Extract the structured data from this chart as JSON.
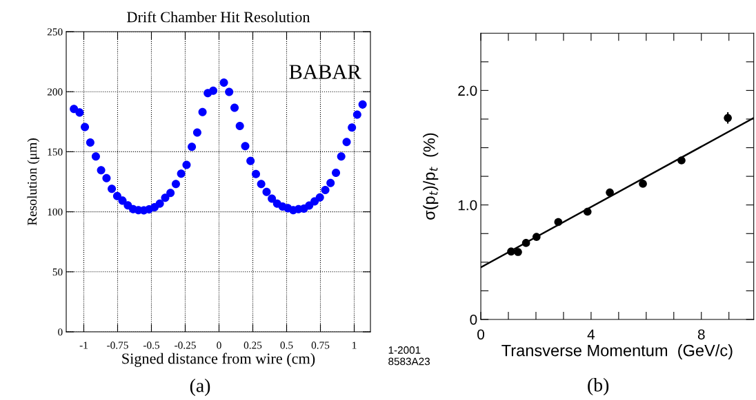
{
  "chart_data": [
    {
      "type": "scatter",
      "title": "Drift Chamber Hit Resolution",
      "xlabel": "Signed distance from wire (cm)",
      "ylabel": "Resolution (μm)",
      "annotations": [
        "BABAR",
        "(a)"
      ],
      "xlim": [
        -1.13,
        1.12
      ],
      "ylim": [
        0,
        250
      ],
      "xticks": [
        {
          "value": -1,
          "label": "-1"
        },
        {
          "value": -0.75,
          "label": "-0.75"
        },
        {
          "value": -0.5,
          "label": "-0.5"
        },
        {
          "value": -0.25,
          "label": "-0.25"
        },
        0,
        0.25,
        0.5,
        0.75,
        1
      ],
      "yticks": [
        0,
        50,
        100,
        150,
        200,
        250
      ],
      "grid": true,
      "marker": "circle",
      "series": [
        {
          "color": "#0000ff",
          "x": [
            -1.073,
            -1.031,
            -0.992,
            -0.952,
            -0.911,
            -0.872,
            -0.832,
            -0.793,
            -0.753,
            -0.714,
            -0.674,
            -0.635,
            -0.596,
            -0.556,
            -0.517,
            -0.477,
            -0.438,
            -0.398,
            -0.359,
            -0.319,
            -0.28,
            -0.24,
            -0.201,
            -0.161,
            -0.122,
            -0.083,
            -0.043,
            0.036,
            0.075,
            0.115,
            0.154,
            0.194,
            0.233,
            0.273,
            0.312,
            0.352,
            0.391,
            0.43,
            0.47,
            0.509,
            0.549,
            0.588,
            0.628,
            0.667,
            0.707,
            0.746,
            0.786,
            0.825,
            0.865,
            0.904,
            0.944,
            0.983,
            1.022,
            1.062
          ],
          "values": [
            185.7,
            182.7,
            170.6,
            157.7,
            146.1,
            134.6,
            128.0,
            119.1,
            113.1,
            109.3,
            105.4,
            102.2,
            101.4,
            101.2,
            102.0,
            103.8,
            106.8,
            111.7,
            115.7,
            123.1,
            131.8,
            139.0,
            154.1,
            166.0,
            183.1,
            198.8,
            200.8,
            207.6,
            199.8,
            186.7,
            171.4,
            154.7,
            142.3,
            131.4,
            123.1,
            116.5,
            110.9,
            106.8,
            104.4,
            103.0,
            101.4,
            102.2,
            102.6,
            105.2,
            108.7,
            111.9,
            118.1,
            124.0,
            132.4,
            146.1,
            158.1,
            170.2,
            180.9,
            189.3
          ]
        }
      ]
    },
    {
      "type": "scatter",
      "xlabel": "Transverse Momentum  (GeV/c)",
      "ylabel": "σ(p$_{t}$)/p$_{t}$  (%)",
      "annotations": [
        "1-2001\n8583A23",
        "(b)"
      ],
      "xlim": [
        0,
        9.9
      ],
      "ylim": [
        0,
        2.5
      ],
      "xticks": [
        0,
        {
          "value": 1,
          "label": null
        },
        {
          "value": 2,
          "label": null
        },
        {
          "value": 3,
          "label": null
        },
        4,
        {
          "value": 5,
          "label": null
        },
        {
          "value": 6,
          "label": null
        },
        {
          "value": 7,
          "label": null
        },
        8,
        {
          "value": 9,
          "label": null
        }
      ],
      "yticks": [
        0,
        {
          "value": 0.25,
          "label": null
        },
        {
          "value": 0.5,
          "label": null
        },
        {
          "value": 0.75,
          "label": null
        },
        {
          "value": 1.0,
          "label": "1.0"
        },
        {
          "value": 1.25,
          "label": null
        },
        {
          "value": 1.5,
          "label": null
        },
        {
          "value": 1.75,
          "label": null
        },
        {
          "value": 2.0,
          "label": "2.0"
        },
        {
          "value": 2.25,
          "label": null
        }
      ],
      "marker": "circle",
      "series": [
        {
          "color": "#000000",
          "x": [
            1.1,
            1.35,
            1.64,
            2.02,
            2.81,
            3.87,
            4.68,
            5.88,
            7.28,
            8.96
          ],
          "values": [
            0.593,
            0.589,
            0.668,
            0.721,
            0.851,
            0.941,
            1.109,
            1.185,
            1.389,
            1.76
          ],
          "errors": [
            null,
            null,
            null,
            null,
            null,
            null,
            null,
            null,
            0.03,
            0.05
          ]
        },
        {
          "type": "line",
          "marker": "none",
          "color": "#000000",
          "x": [
            0,
            9.9
          ],
          "values": [
            0.455,
            1.76
          ]
        }
      ]
    }
  ]
}
